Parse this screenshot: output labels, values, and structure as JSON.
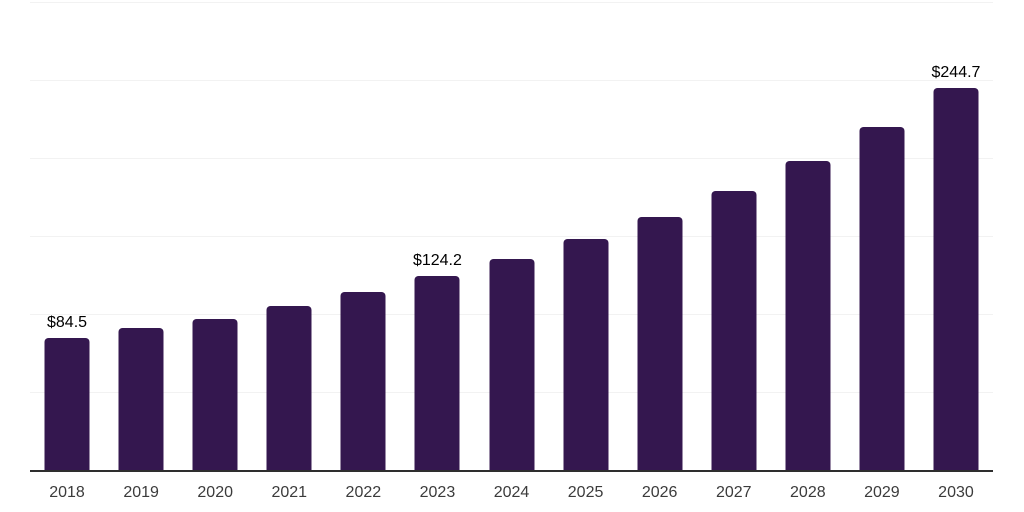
{
  "chart_data": {
    "type": "bar",
    "title": "",
    "xlabel": "",
    "ylabel": "",
    "categories": [
      "2018",
      "2019",
      "2020",
      "2021",
      "2022",
      "2023",
      "2024",
      "2025",
      "2026",
      "2027",
      "2028",
      "2029",
      "2030"
    ],
    "values": [
      84.5,
      91.0,
      97.1,
      104.9,
      114.4,
      124.2,
      135.3,
      148.0,
      162.5,
      179.0,
      198.0,
      219.6,
      244.7
    ],
    "value_labels": [
      {
        "category": "2018",
        "text": "$84.5"
      },
      {
        "category": "2023",
        "text": "$124.2"
      },
      {
        "category": "2030",
        "text": "$244.7"
      }
    ],
    "ylim": [
      0,
      300
    ],
    "gridline_values": [
      50,
      100,
      150,
      200,
      250,
      300
    ],
    "grid": true,
    "legend": "none",
    "y_axis_tick_labels": "none",
    "colors": {
      "bar": "#34174f",
      "gridline": "#f2f2f2",
      "axis_line": "#2e2e2e",
      "value_label_text": "#000000",
      "x_tick_text": "#3b3b3b",
      "background": "#ffffff"
    }
  }
}
